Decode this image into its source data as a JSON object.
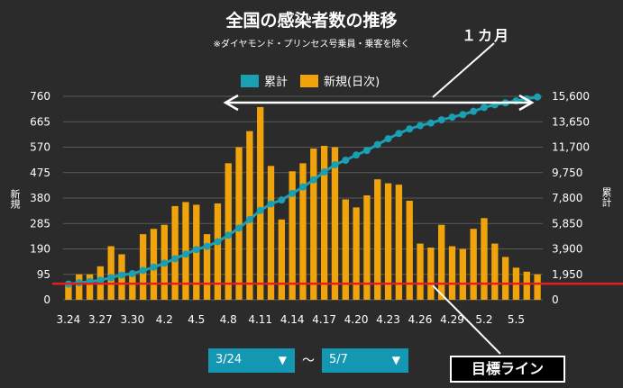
{
  "title": "全国の感染者数の推移",
  "subtitle": "※ダイヤモンド・プリンセス号乗員・乗客を除く",
  "annotation_month": "１カ月",
  "annotation_target": "目標ライン",
  "legend": [
    {
      "name": "累計",
      "color": "#1a9fb3"
    },
    {
      "name": "新規(日次)",
      "color": "#f0a30a"
    }
  ],
  "ylabel_left": "新規",
  "ylabel_right": "累計",
  "date_from": "3/24",
  "date_to": "5/7",
  "range_sep": "〜",
  "chart_data": {
    "type": "bar",
    "title": "全国の感染者数の推移",
    "x_tick_labels": [
      "3.24",
      "3.27",
      "3.30",
      "4.2",
      "4.5",
      "4.8",
      "4.11",
      "4.14",
      "4.17",
      "4.20",
      "4.23",
      "4.26",
      "4.29",
      "5.2",
      "5.5"
    ],
    "x_ticks_every": 3,
    "categories": [
      "3.24",
      "3.25",
      "3.26",
      "3.27",
      "3.28",
      "3.29",
      "3.30",
      "3.31",
      "4.1",
      "4.2",
      "4.3",
      "4.4",
      "4.5",
      "4.6",
      "4.7",
      "4.8",
      "4.9",
      "4.10",
      "4.11",
      "4.12",
      "4.13",
      "4.14",
      "4.15",
      "4.16",
      "4.17",
      "4.18",
      "4.19",
      "4.20",
      "4.21",
      "4.22",
      "4.23",
      "4.24",
      "4.25",
      "4.26",
      "4.27",
      "4.28",
      "4.29",
      "4.30",
      "5.1",
      "5.2",
      "5.3",
      "5.4",
      "5.5",
      "5.6",
      "5.7"
    ],
    "y_left": {
      "label": "新規",
      "ticks": [
        0,
        95,
        190,
        285,
        380,
        475,
        570,
        665,
        760
      ],
      "ylim": [
        0,
        760
      ]
    },
    "y_right": {
      "label": "累計",
      "ticks": [
        "0",
        "1,950",
        "3,900",
        "5,850",
        "7,800",
        "9,750",
        "11,700",
        "13,650",
        "15,600"
      ],
      "ylim": [
        0,
        15600
      ]
    },
    "series": [
      {
        "name": "新規(日次)",
        "type": "bar",
        "axis": "left",
        "color": "#f0a30a",
        "values": [
          65,
          95,
          95,
          125,
          200,
          170,
          95,
          245,
          265,
          280,
          350,
          365,
          355,
          245,
          360,
          510,
          570,
          630,
          720,
          500,
          300,
          480,
          510,
          565,
          575,
          570,
          375,
          345,
          390,
          450,
          435,
          430,
          370,
          210,
          195,
          280,
          200,
          190,
          265,
          305,
          210,
          160,
          120,
          105,
          95
        ]
      },
      {
        "name": "累計",
        "type": "line",
        "axis": "right",
        "color": "#1a9fb3",
        "values": [
          1200,
          1300,
          1400,
          1500,
          1700,
          1900,
          2000,
          2250,
          2500,
          2800,
          3150,
          3500,
          3850,
          4100,
          4450,
          4950,
          5500,
          6150,
          6850,
          7350,
          7650,
          8150,
          8650,
          9200,
          9800,
          10350,
          10700,
          11100,
          11450,
          11900,
          12350,
          12750,
          13100,
          13350,
          13550,
          13800,
          14000,
          14200,
          14450,
          14750,
          14950,
          15100,
          15250,
          15400,
          15550
        ]
      }
    ],
    "target_line": {
      "value": 60,
      "axis": "left",
      "color": "#e02020",
      "label": "目標ライン"
    },
    "grid": true
  }
}
